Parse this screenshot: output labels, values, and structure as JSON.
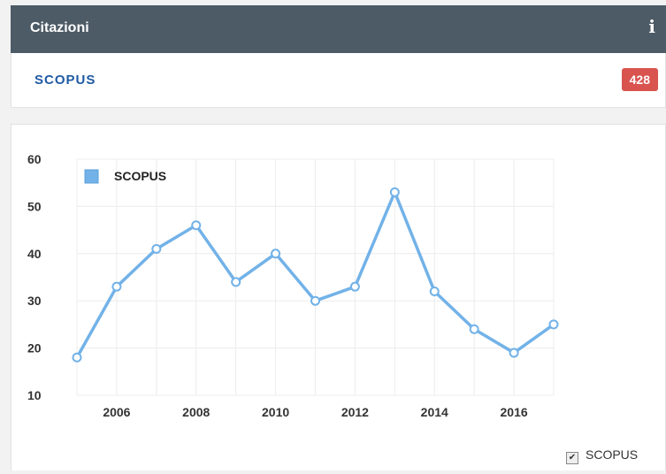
{
  "header": {
    "title": "Citazioni",
    "info_icon": "info-icon"
  },
  "source": {
    "logo_text": "SCOPUS",
    "count": "428"
  },
  "colors": {
    "header_bg": "#4d5b66",
    "badge": "#d9534f",
    "line": "#72b2e8",
    "logo": "#1f5aa3"
  },
  "chart_data": {
    "type": "line",
    "x": [
      2005,
      2006,
      2007,
      2008,
      2009,
      2010,
      2011,
      2012,
      2013,
      2014,
      2015,
      2016,
      2017
    ],
    "series": [
      {
        "name": "SCOPUS",
        "values": [
          18,
          33,
          41,
          46,
          34,
          40,
          30,
          33,
          53,
          32,
          24,
          19,
          25
        ]
      }
    ],
    "x_ticks": [
      "2006",
      "2008",
      "2010",
      "2012",
      "2014",
      "2016"
    ],
    "y_ticks": [
      "10",
      "20",
      "30",
      "40",
      "50",
      "60"
    ],
    "ylim": [
      10,
      60
    ],
    "xlim": [
      2005,
      2017
    ],
    "grid": true,
    "legend": "top-left"
  },
  "bottom_legend": {
    "label": "SCOPUS",
    "checked": true
  }
}
